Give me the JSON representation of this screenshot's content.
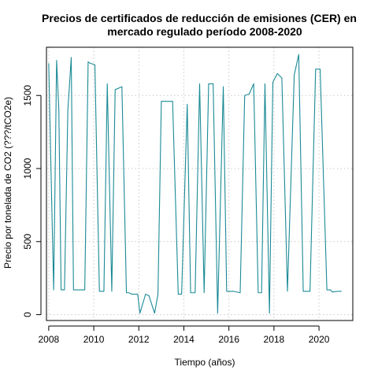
{
  "chart_data": {
    "type": "line",
    "title_line1": "Precios de certificados de reducción de emisiones (CER) en",
    "title_line2": "mercado regulado período 2008-2020",
    "xlabel": "Tiempo (años)",
    "ylabel": "Precio por tonelada de CO2 (???/tCO2e)",
    "xlim": [
      2007.9,
      2021.5
    ],
    "ylim": [
      -40,
      1830
    ],
    "x_ticks": [
      2008,
      2010,
      2012,
      2014,
      2016,
      2018,
      2020
    ],
    "y_ticks": [
      0,
      500,
      1000,
      1500
    ],
    "grid": true,
    "line_color": "#1a8a96",
    "series": [
      {
        "x": [
          2008.0,
          2008.1,
          2008.22,
          2008.35,
          2008.45,
          2008.55,
          2008.7,
          2008.85,
          2009.0,
          2009.1,
          2009.2,
          2009.4,
          2009.6,
          2009.75,
          2009.85,
          2010.05,
          2010.25,
          2010.45,
          2010.6,
          2010.8,
          2010.95,
          2011.1,
          2011.25,
          2011.45,
          2011.55,
          2011.7,
          2011.95,
          2012.05,
          2012.3,
          2012.45,
          2012.7,
          2012.85,
          2013.0,
          2013.2,
          2013.5,
          2013.75,
          2013.9,
          2014.15,
          2014.3,
          2014.5,
          2014.7,
          2014.9,
          2015.1,
          2015.3,
          2015.5,
          2015.75,
          2015.9,
          2016.2,
          2016.5,
          2016.7,
          2016.9,
          2017.1,
          2017.3,
          2017.45,
          2017.6,
          2017.8,
          2017.95,
          2018.15,
          2018.35,
          2018.6,
          2018.9,
          2019.1,
          2019.3,
          2019.6,
          2019.85,
          2020.05,
          2020.35,
          2020.5,
          2020.6,
          2020.85,
          2021.0
        ],
        "y": [
          1720,
          1000,
          170,
          1740,
          1400,
          170,
          170,
          1400,
          1760,
          170,
          170,
          170,
          170,
          1730,
          1720,
          1710,
          160,
          160,
          1580,
          160,
          1540,
          1550,
          1560,
          150,
          150,
          140,
          140,
          10,
          140,
          130,
          10,
          140,
          1460,
          1460,
          1460,
          140,
          140,
          1440,
          150,
          150,
          1580,
          150,
          1580,
          1580,
          10,
          1560,
          160,
          160,
          150,
          1500,
          1510,
          1580,
          150,
          150,
          1580,
          10,
          1590,
          1650,
          1620,
          160,
          1640,
          1780,
          160,
          160,
          1680,
          1680,
          170,
          170,
          155,
          160,
          160
        ]
      }
    ]
  }
}
